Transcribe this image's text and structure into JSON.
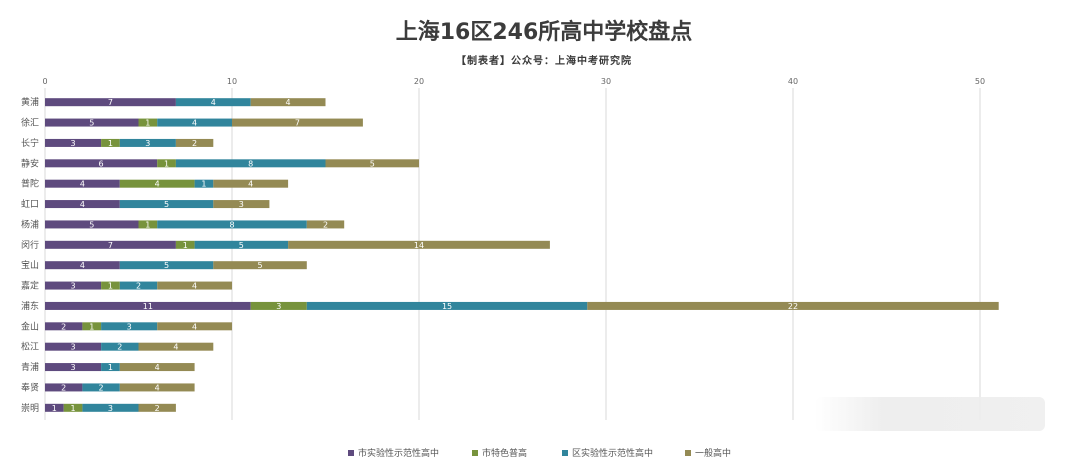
{
  "chart_data": {
    "type": "bar",
    "orientation": "horizontal",
    "stacked": true,
    "title": "上海16区246所高中学校盘点",
    "subtitle": "【制表者】公众号：上海中考研究院",
    "categories": [
      "黄浦",
      "徐汇",
      "长宁",
      "静安",
      "普陀",
      "虹口",
      "杨浦",
      "闵行",
      "宝山",
      "嘉定",
      "浦东",
      "金山",
      "松江",
      "青浦",
      "奉贤",
      "崇明"
    ],
    "series": [
      {
        "name": "市实验性示范性高中",
        "color": "#5e4a7e",
        "values": [
          7,
          5,
          3,
          6,
          4,
          4,
          5,
          7,
          4,
          3,
          11,
          2,
          3,
          3,
          2,
          1
        ]
      },
      {
        "name": "市特色普高",
        "color": "#77933c",
        "values": [
          0,
          1,
          1,
          1,
          4,
          0,
          1,
          1,
          0,
          1,
          3,
          1,
          0,
          0,
          0,
          1
        ]
      },
      {
        "name": "区实验性示范性高中",
        "color": "#31859c",
        "values": [
          4,
          4,
          3,
          8,
          1,
          5,
          8,
          5,
          5,
          2,
          15,
          3,
          2,
          1,
          2,
          3
        ]
      },
      {
        "name": "一般高中",
        "color": "#948a54",
        "values": [
          4,
          7,
          2,
          5,
          4,
          3,
          2,
          14,
          5,
          4,
          22,
          4,
          4,
          4,
          4,
          2
        ]
      }
    ],
    "xlim": [
      0,
      50
    ],
    "xticks": [
      0,
      10,
      20,
      30,
      40,
      50
    ],
    "grid": true,
    "legend_position": "bottom"
  }
}
